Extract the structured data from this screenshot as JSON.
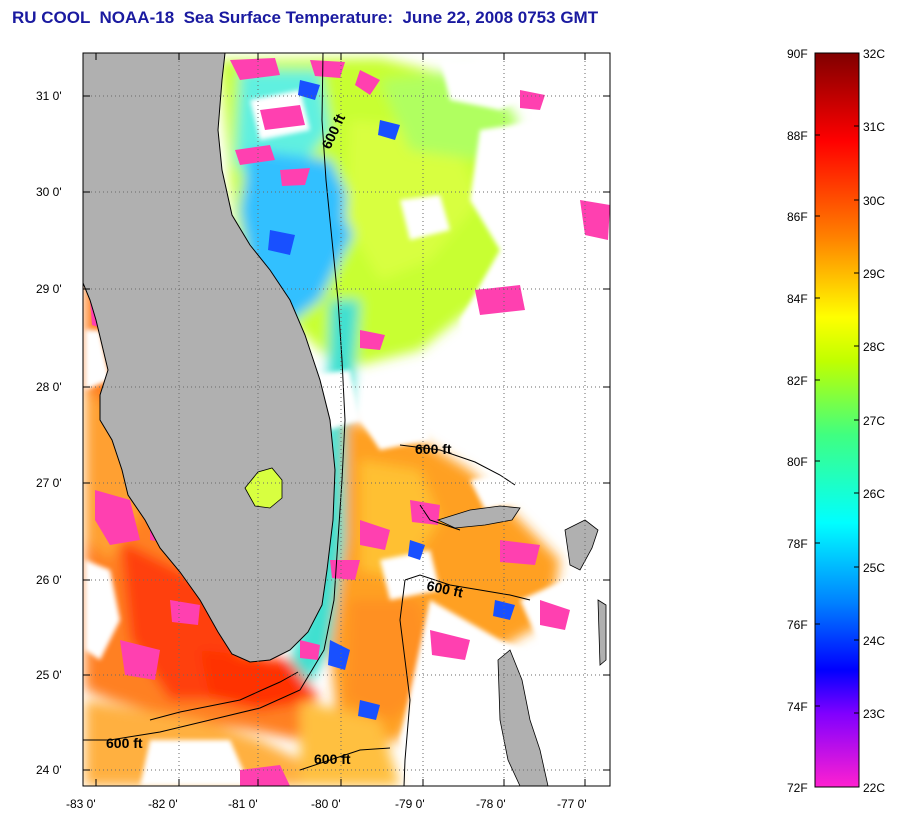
{
  "title": "RU COOL  NOAA-18  Sea Surface Temperature:  June 22, 2008 0753 GMT",
  "map": {
    "lat_labels": [
      "31 0'",
      "30 0'",
      "29 0'",
      "28 0'",
      "27 0'",
      "26 0'",
      "25 0'",
      "24 0'"
    ],
    "lon_labels": [
      "-83 0'",
      "-82 0'",
      "-81 0'",
      "-80 0'",
      "-79 0'",
      "-78 0'",
      "-77 0'"
    ],
    "contour_labels": [
      "600 ft",
      "600 ft",
      "600 ft",
      "600 ft",
      "600 ft"
    ],
    "colors": {
      "land": "#b0b0b0",
      "cloud": "#ffffff",
      "cool_flag": "#ff40b0"
    }
  },
  "colorbar": {
    "f_labels": [
      "90F",
      "88F",
      "86F",
      "84F",
      "82F",
      "80F",
      "78F",
      "76F",
      "74F",
      "72F"
    ],
    "c_labels": [
      "32C",
      "31C",
      "30C",
      "29C",
      "28C",
      "27C",
      "26C",
      "25C",
      "24C",
      "23C",
      "22C"
    ],
    "colors": [
      "#ff20d0",
      "#8000ff",
      "#0000ff",
      "#0080ff",
      "#00ffff",
      "#40ff80",
      "#c0ff00",
      "#ffff00",
      "#ff8000",
      "#ff0000",
      "#800000"
    ]
  }
}
